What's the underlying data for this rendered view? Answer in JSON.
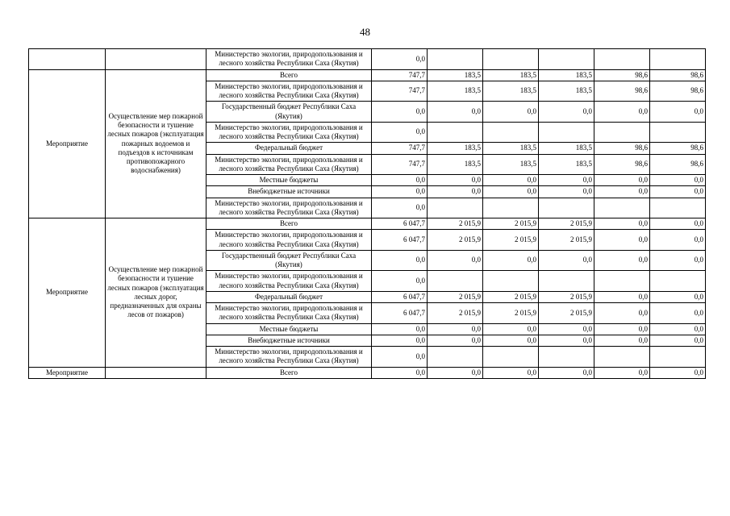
{
  "page_number": "48",
  "table": {
    "blocks": [
      {
        "activity": "",
        "description": "",
        "rows": [
          {
            "source": "Министерство экологии, природопользования и лесного хозяйства Республики Саха (Якутия)",
            "values": [
              "0,0",
              "",
              "",
              "",
              "",
              ""
            ]
          }
        ]
      },
      {
        "activity": "Мероприятие",
        "description": "Осуществление мер пожарной безопасности и тушение лесных пожаров (эксплуатация пожарных водоемов и подъездов к источникам противопожарного водоснабжения)",
        "rows": [
          {
            "source": "Всего",
            "values": [
              "747,7",
              "183,5",
              "183,5",
              "183,5",
              "98,6",
              "98,6"
            ]
          },
          {
            "source": "Министерство экологии, природопользования и лесного хозяйства Республики Саха (Якутия)",
            "values": [
              "747,7",
              "183,5",
              "183,5",
              "183,5",
              "98,6",
              "98,6"
            ]
          },
          {
            "source": "Государственный бюджет Республики Саха (Якутия)",
            "values": [
              "0,0",
              "0,0",
              "0,0",
              "0,0",
              "0,0",
              "0,0"
            ]
          },
          {
            "source": "Министерство экологии, природопользования и лесного хозяйства Республики Саха (Якутия)",
            "values": [
              "0,0",
              "",
              "",
              "",
              "",
              ""
            ]
          },
          {
            "source": "Федеральный бюджет",
            "values": [
              "747,7",
              "183,5",
              "183,5",
              "183,5",
              "98,6",
              "98,6"
            ]
          },
          {
            "source": "Министерство экологии, природопользования и лесного хозяйства Республики Саха (Якутия)",
            "values": [
              "747,7",
              "183,5",
              "183,5",
              "183,5",
              "98,6",
              "98,6"
            ]
          },
          {
            "source": "Местные бюджеты",
            "values": [
              "0,0",
              "0,0",
              "0,0",
              "0,0",
              "0,0",
              "0,0"
            ]
          },
          {
            "source": "Внебюджетные источники",
            "values": [
              "0,0",
              "0,0",
              "0,0",
              "0,0",
              "0,0",
              "0,0"
            ]
          },
          {
            "source": "Министерство экологии, природопользования и лесного хозяйства Республики Саха (Якутия)",
            "values": [
              "0,0",
              "",
              "",
              "",
              "",
              ""
            ]
          }
        ]
      },
      {
        "activity": "Мероприятие",
        "description": "Осуществление мер пожарной безопасности и тушение лесных пожаров (эксплуатация лесных дорог, предназначенных для охраны лесов от пожаров)",
        "rows": [
          {
            "source": "Всего",
            "values": [
              "6 047,7",
              "2 015,9",
              "2 015,9",
              "2 015,9",
              "0,0",
              "0,0"
            ]
          },
          {
            "source": "Министерство экологии, природопользования и лесного хозяйства Республики Саха (Якутия)",
            "values": [
              "6 047,7",
              "2 015,9",
              "2 015,9",
              "2 015,9",
              "0,0",
              "0,0"
            ]
          },
          {
            "source": "Государственный бюджет Республики Саха (Якутия)",
            "values": [
              "0,0",
              "0,0",
              "0,0",
              "0,0",
              "0,0",
              "0,0"
            ]
          },
          {
            "source": "Министерство экологии, природопользования и лесного хозяйства Республики Саха (Якутия)",
            "values": [
              "0,0",
              "",
              "",
              "",
              "",
              ""
            ]
          },
          {
            "source": "Федеральный бюджет",
            "values": [
              "6 047,7",
              "2 015,9",
              "2 015,9",
              "2 015,9",
              "0,0",
              "0,0"
            ]
          },
          {
            "source": "Министерство экологии, природопользования и лесного хозяйства Республики Саха (Якутия)",
            "values": [
              "6 047,7",
              "2 015,9",
              "2 015,9",
              "2 015,9",
              "0,0",
              "0,0"
            ]
          },
          {
            "source": "Местные бюджеты",
            "values": [
              "0,0",
              "0,0",
              "0,0",
              "0,0",
              "0,0",
              "0,0"
            ]
          },
          {
            "source": "Внебюджетные источники",
            "values": [
              "0,0",
              "0,0",
              "0,0",
              "0,0",
              "0,0",
              "0,0"
            ]
          },
          {
            "source": "Министерство экологии, природопользования и лесного хозяйства Республики Саха (Якутия)",
            "values": [
              "0,0",
              "",
              "",
              "",
              "",
              ""
            ]
          }
        ]
      },
      {
        "activity": "Мероприятие",
        "description": "",
        "rows": [
          {
            "source": "Всего",
            "values": [
              "0,0",
              "0,0",
              "0,0",
              "0,0",
              "0,0",
              "0,0"
            ]
          }
        ]
      }
    ]
  }
}
